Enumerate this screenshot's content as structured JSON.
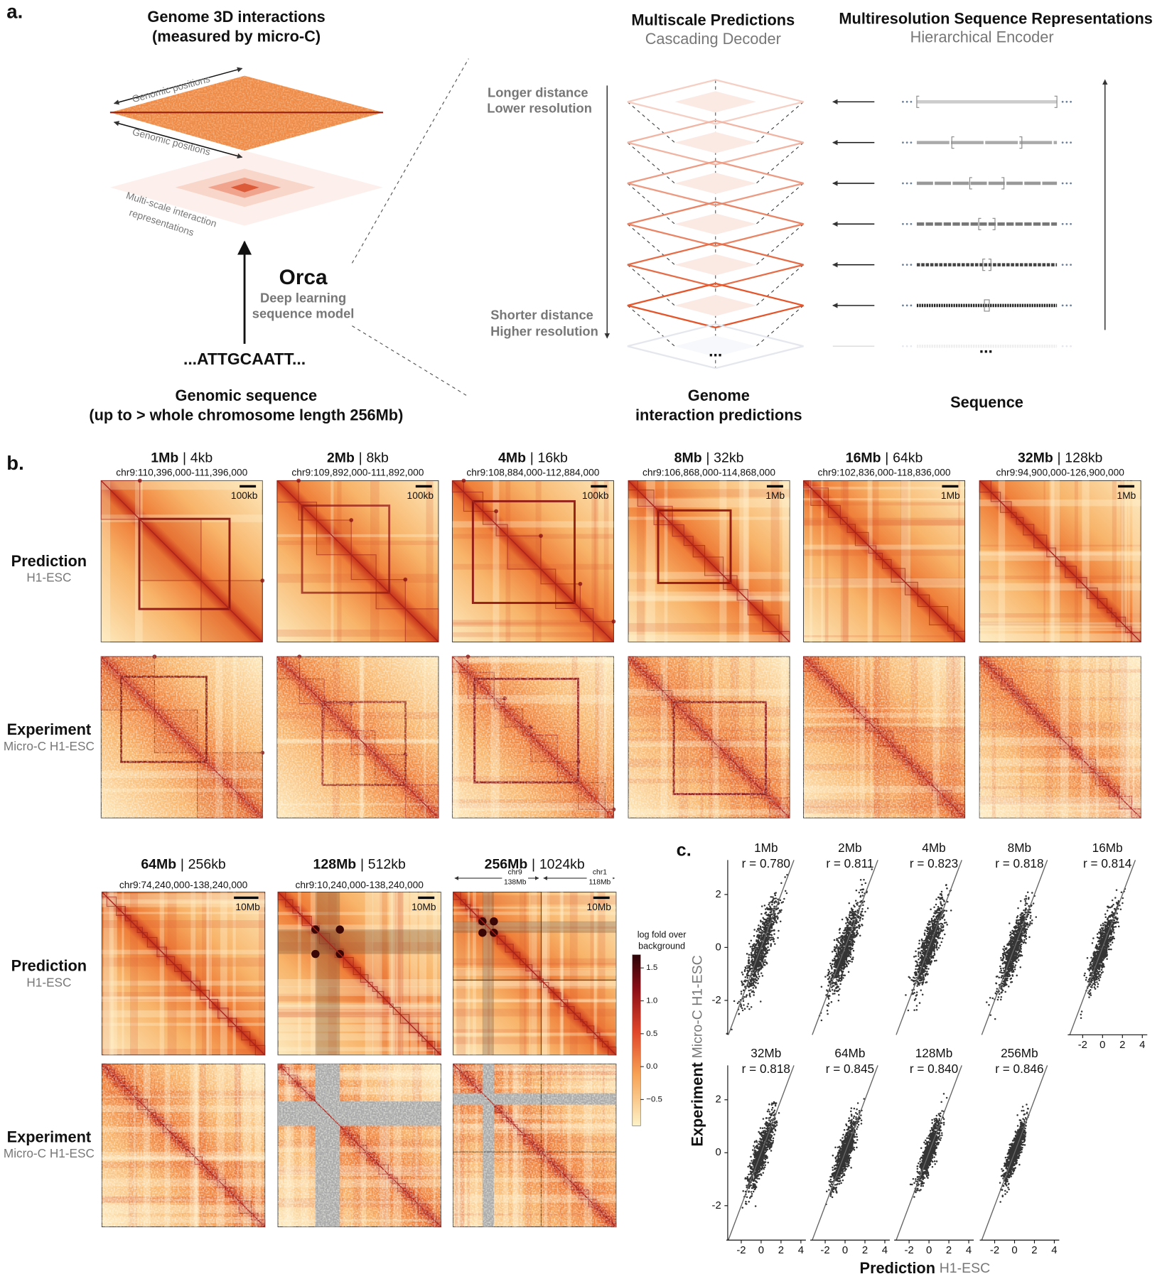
{
  "panel_a": {
    "label": "a.",
    "left_title": [
      "Genome 3D interactions",
      "(measured by micro-C)"
    ],
    "axis_labels": [
      "Genomic positions",
      "Genomic positions"
    ],
    "multiscale_label": [
      "Multi-scale interaction",
      "representations"
    ],
    "model_name": "Orca",
    "model_desc": [
      "Deep learning",
      "sequence model"
    ],
    "sequence": "...ATTGCAATT...",
    "sequence_caption": [
      "Genomic sequence",
      "(up to > whole chromosome length 256Mb)"
    ],
    "decoder_title": "Multiscale Predictions",
    "decoder_subtitle": "Cascading Decoder",
    "encoder_title": "Multiresolution Sequence Representations",
    "encoder_subtitle": "Hierarchical Encoder",
    "top_note": [
      "Longer distance",
      "Lower resolution"
    ],
    "bottom_note": [
      "Shorter distance",
      "Higher resolution"
    ],
    "ellipsis": "...",
    "decoder_caption": [
      "Genome",
      "interaction predictions"
    ],
    "encoder_caption": "Sequence"
  },
  "panel_b": {
    "label": "b.",
    "separator": "|",
    "row_labels": [
      {
        "title": "Prediction",
        "subtitle": "H1-ESC"
      },
      {
        "title": "Experiment",
        "subtitle": "Micro-C H1-ESC"
      }
    ],
    "scales": [
      {
        "scale": "1Mb",
        "resolution": "4kb",
        "region": "chr9:110,396,000-111,396,000",
        "scalebar": "100kb"
      },
      {
        "scale": "2Mb",
        "resolution": "8kb",
        "region": "chr9:109,892,000-111,892,000",
        "scalebar": "100kb"
      },
      {
        "scale": "4Mb",
        "resolution": "16kb",
        "region": "chr9:108,884,000-112,884,000",
        "scalebar": "100kb"
      },
      {
        "scale": "8Mb",
        "resolution": "32kb",
        "region": "chr9:106,868,000-114,868,000",
        "scalebar": "1Mb"
      },
      {
        "scale": "16Mb",
        "resolution": "64kb",
        "region": "chr9:102,836,000-118,836,000",
        "scalebar": "1Mb"
      },
      {
        "scale": "32Mb",
        "resolution": "128kb",
        "region": "chr9:94,900,000-126,900,000",
        "scalebar": "1Mb"
      },
      {
        "scale": "64Mb",
        "resolution": "256kb",
        "region": "chr9:74,240,000-138,240,000",
        "scalebar": "10Mb"
      },
      {
        "scale": "128Mb",
        "resolution": "512kb",
        "region": "chr9:10,240,000-138,240,000",
        "scalebar": "10Mb"
      },
      {
        "scale": "256Mb",
        "resolution": "1024kb",
        "scalebar": "10Mb",
        "chromosomes": [
          {
            "name": "chr9",
            "length": "138Mb"
          },
          {
            "name": "chr1",
            "length": "118Mb"
          }
        ]
      }
    ],
    "colorbar": {
      "title": [
        "log fold over",
        "background"
      ],
      "lim": [
        -0.9,
        1.7
      ],
      "ticks": [
        {
          "value": 1.5,
          "label": "1.5"
        },
        {
          "value": 1,
          "label": "1.0"
        },
        {
          "value": 0.5,
          "label": "0.5"
        },
        {
          "value": 0,
          "label": "0.0"
        },
        {
          "value": -0.5,
          "label": "−0.5"
        }
      ]
    }
  },
  "panel_c": {
    "label": "c.",
    "y_label": {
      "title": "Experiment",
      "subtitle": "Micro-C H1-ESC"
    },
    "x_label": {
      "title": "Prediction",
      "subtitle": "H1-ESC"
    },
    "xlim": [
      -3.5,
      4.5
    ],
    "ylim": [
      -3.3,
      3.3
    ],
    "xticks": [
      -2,
      0,
      2,
      4
    ],
    "yticks": [
      -2,
      0,
      2
    ],
    "panels": [
      {
        "scale": "1Mb",
        "r": "r = 0.780"
      },
      {
        "scale": "2Mb",
        "r": "r = 0.811"
      },
      {
        "scale": "4Mb",
        "r": "r = 0.823"
      },
      {
        "scale": "8Mb",
        "r": "r = 0.818"
      },
      {
        "scale": "16Mb",
        "r": "r = 0.814"
      },
      {
        "scale": "32Mb",
        "r": "r = 0.818"
      },
      {
        "scale": "64Mb",
        "r": "r = 0.845"
      },
      {
        "scale": "128Mb",
        "r": "r = 0.840"
      },
      {
        "scale": "256Mb",
        "r": "r = 0.846"
      }
    ]
  }
}
